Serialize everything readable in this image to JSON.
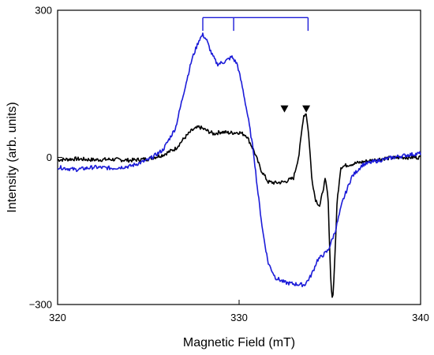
{
  "chart_data": {
    "type": "line",
    "xlabel": "Magnetic Field (mT)",
    "ylabel": "Intensity (arb. units)",
    "xlim": [
      320,
      340
    ],
    "ylim": [
      -300,
      300
    ],
    "x_ticks": [
      320,
      330,
      340
    ],
    "x_tick_labels": [
      "320",
      "330",
      "340"
    ],
    "y_ticks": [
      -300,
      0,
      300
    ],
    "y_tick_labels": [
      "−300",
      "0",
      "300"
    ],
    "grid": false,
    "legend": "none",
    "series": [
      {
        "color": "#000000",
        "x": [
          320.0,
          321.0,
          322.0,
          323.0,
          324.0,
          325.0,
          325.8,
          326.5,
          327.0,
          327.4,
          327.8,
          328.2,
          328.6,
          329.0,
          329.5,
          330.0,
          330.4,
          330.8,
          331.2,
          331.6,
          332.0,
          332.5,
          333.0,
          333.3,
          333.55,
          333.7,
          333.85,
          334.0,
          334.2,
          334.45,
          334.6,
          334.75,
          334.9,
          335.05,
          335.15,
          335.25,
          335.4,
          335.6,
          336.0,
          337.0,
          338.0,
          339.0,
          340.0
        ],
        "y": [
          -5,
          -3,
          -5,
          -4,
          -6,
          -3,
          5,
          18,
          40,
          55,
          62,
          55,
          48,
          52,
          50,
          51,
          45,
          15,
          -25,
          -50,
          -52,
          -50,
          -42,
          5,
          85,
          90,
          40,
          -40,
          -85,
          -100,
          -70,
          -45,
          -80,
          -250,
          -295,
          -230,
          -90,
          -20,
          -15,
          -8,
          -2,
          0,
          0
        ]
      },
      {
        "color": "#1c1cd8",
        "x": [
          320.0,
          321.0,
          322.0,
          323.0,
          324.0,
          325.0,
          325.8,
          326.5,
          327.0,
          327.4,
          327.8,
          328.0,
          328.2,
          328.5,
          328.8,
          329.2,
          329.6,
          329.9,
          330.2,
          330.5,
          330.8,
          331.0,
          331.3,
          331.6,
          332.0,
          332.5,
          333.0,
          333.6,
          333.9,
          334.1,
          334.3,
          334.6,
          334.9,
          335.3,
          335.7,
          336.2,
          336.8,
          337.5,
          338.5,
          339.3,
          340.0
        ],
        "y": [
          -20,
          -25,
          -20,
          -22,
          -18,
          -5,
          15,
          60,
          140,
          200,
          240,
          250,
          240,
          210,
          190,
          195,
          205,
          190,
          140,
          80,
          10,
          -60,
          -150,
          -215,
          -245,
          -255,
          -258,
          -260,
          -245,
          -230,
          -210,
          -200,
          -190,
          -150,
          -90,
          -40,
          -15,
          -8,
          0,
          5,
          8
        ]
      }
    ],
    "annotations": [
      {
        "type": "bracket",
        "color": "#1c1cd8",
        "ticks_x": [
          328.0,
          329.7,
          333.8
        ],
        "y_top": 285,
        "y_bottom": 258
      },
      {
        "type": "triangle-down-marker",
        "color": "#000000",
        "x": 332.5,
        "y": 98
      },
      {
        "type": "triangle-down-marker",
        "color": "#000000",
        "x": 333.7,
        "y": 98
      }
    ]
  }
}
